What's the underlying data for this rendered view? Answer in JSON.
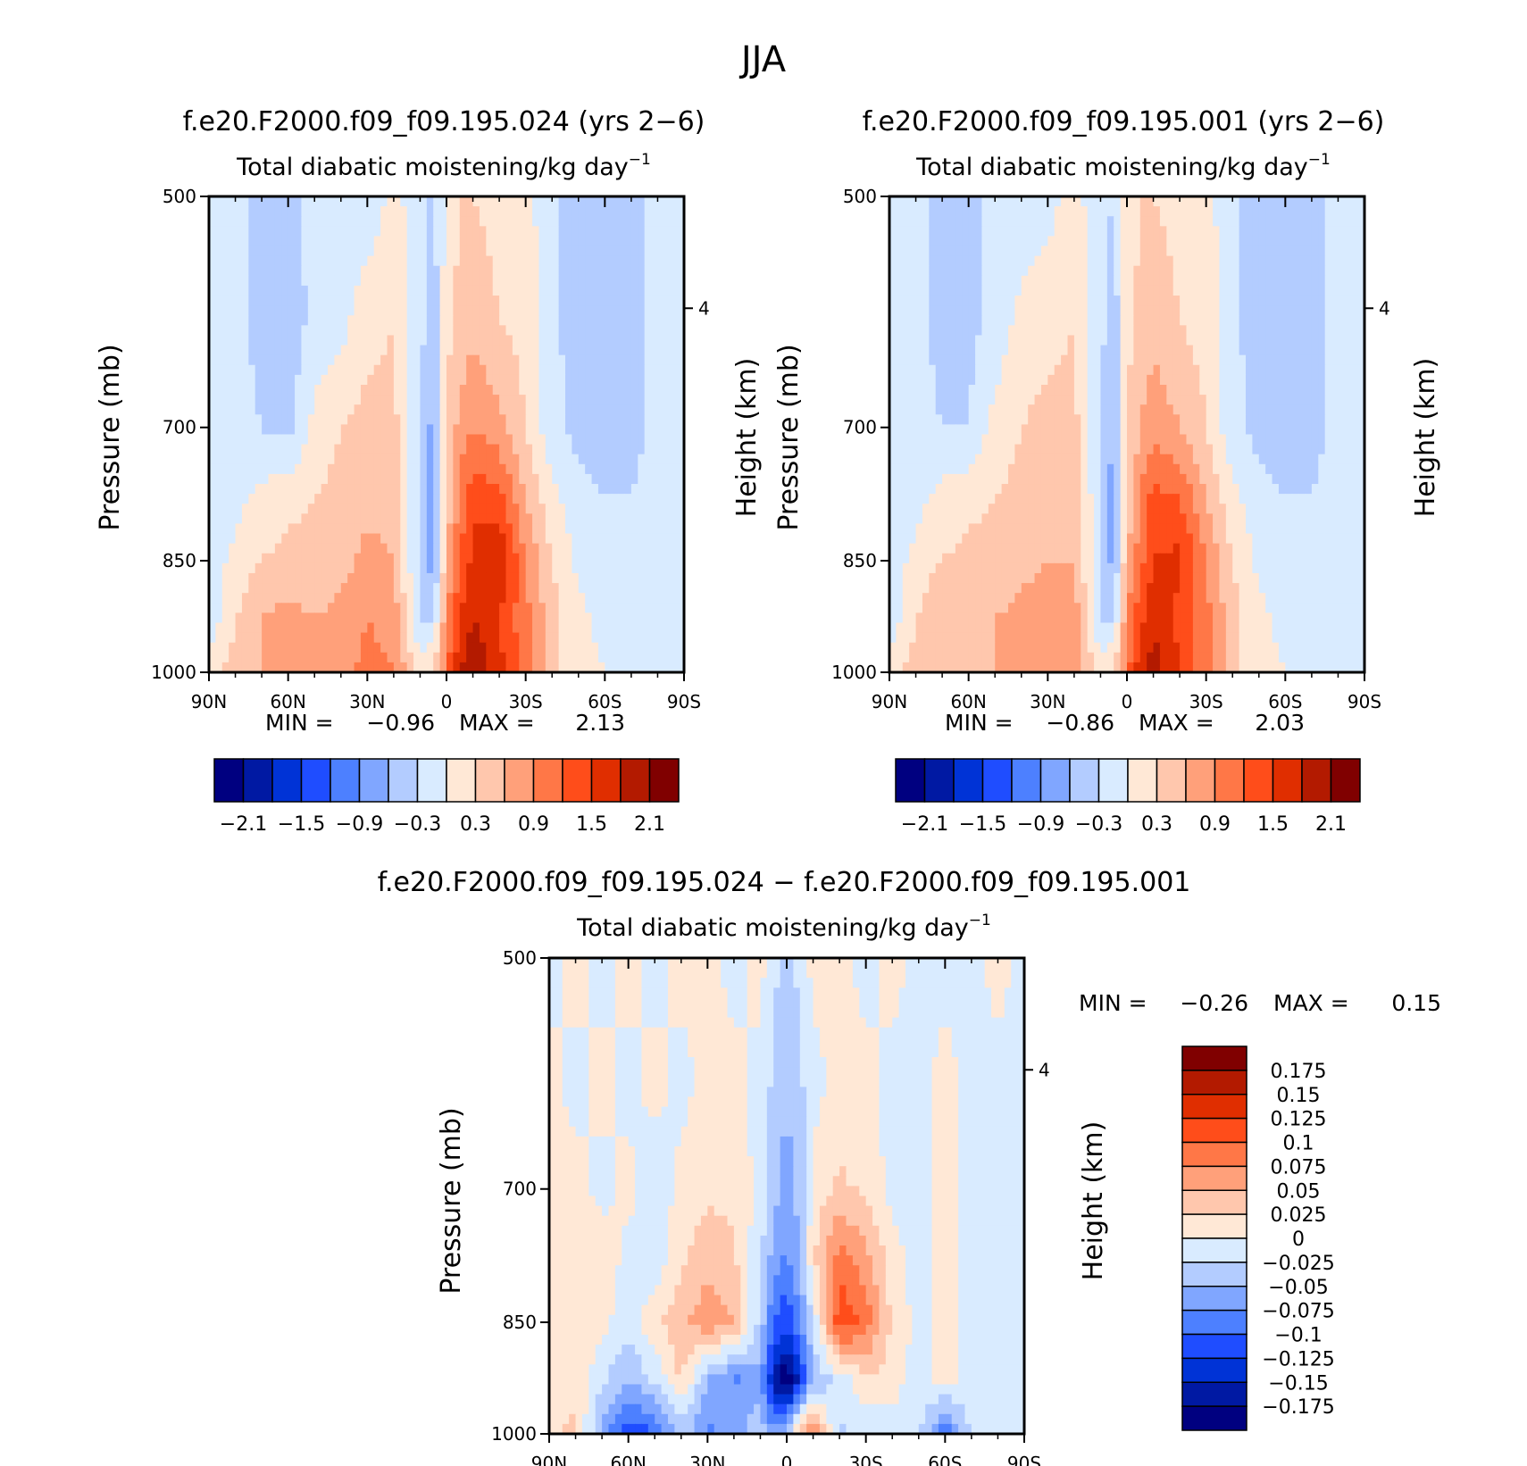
{
  "figure": {
    "title": "JJA",
    "diff_title": "f.e20.F2000.f09_f09.195.024 − f.e20.F2000.f09_f09.195.001"
  },
  "colors": {
    "main_scale": [
      "#000080",
      "#0019a3",
      "#0033d6",
      "#1f4dff",
      "#4d80ff",
      "#80a6ff",
      "#b3ccff",
      "#d9ebff",
      "#ffe8d6",
      "#ffc7ad",
      "#ffa07a",
      "#ff7747",
      "#ff4d1a",
      "#e02e00",
      "#b31a00",
      "#800000"
    ],
    "diff_scale": [
      "#000080",
      "#0019a3",
      "#0033d6",
      "#1f4dff",
      "#4d80ff",
      "#80a6ff",
      "#b3ccff",
      "#d9ebff",
      "#ffe8d6",
      "#ffc7ad",
      "#ffa07a",
      "#ff7747",
      "#ff4d1a",
      "#e02e00",
      "#b31a00",
      "#800000"
    ]
  },
  "chart_data": [
    {
      "type": "heatmap",
      "title": "f.e20.F2000.f09_f09.195.024 (yrs 2−6)",
      "subtitle": "Total diabatic moistening/kg day",
      "subtitle_exp": "−1",
      "xlabel": "",
      "ylabel": "Pressure (mb)",
      "ylabel_right": "Height (km)",
      "xticks": [
        "90N",
        "60N",
        "30N",
        "0",
        "30S",
        "60S",
        "90S"
      ],
      "yticks": [
        "500",
        "700",
        "850",
        "1000"
      ],
      "yticks_right": [
        "4"
      ],
      "xlim": [
        90,
        -90
      ],
      "ylim": [
        500,
        1000
      ],
      "min_label": "MIN =",
      "min_value": "−0.96",
      "max_label": "MAX =",
      "max_value": "2.13",
      "colorbar_labels": [
        "−2.1",
        "−1.5",
        "−0.9",
        "−0.3",
        "0.3",
        "0.9",
        "1.5",
        "2.1"
      ],
      "colorbar_levels": [
        -2.1,
        -1.8,
        -1.5,
        -1.2,
        -0.9,
        -0.6,
        -0.3,
        0,
        0.3,
        0.6,
        0.9,
        1.2,
        1.5,
        1.8,
        2.1
      ],
      "field": {
        "lat": [
          90,
          80,
          70,
          60,
          50,
          40,
          30,
          20,
          10,
          5,
          0,
          -5,
          -10,
          -20,
          -30,
          -40,
          -50,
          -60,
          -70,
          -80,
          -90
        ],
        "p": [
          500,
          600,
          700,
          775,
          850,
          925,
          1000
        ],
        "values": [
          [
            -0.2,
            -0.2,
            -0.4,
            -0.4,
            -0.2,
            -0.2,
            -0.2,
            0.1,
            -0.2,
            -0.4,
            0.1,
            0.3,
            0.3,
            0.2,
            0.1,
            -0.2,
            -0.5,
            -0.5,
            -0.4,
            -0.2,
            -0.2
          ],
          [
            -0.2,
            -0.2,
            -0.4,
            -0.5,
            -0.2,
            -0.1,
            0.2,
            0.3,
            -0.2,
            -0.5,
            0.2,
            0.4,
            0.5,
            0.3,
            0.2,
            -0.2,
            -0.5,
            -0.6,
            -0.4,
            -0.2,
            -0.2
          ],
          [
            -0.2,
            -0.2,
            -0.3,
            -0.4,
            0.1,
            0.3,
            0.4,
            0.4,
            -0.3,
            -0.7,
            0.3,
            0.7,
            0.9,
            0.7,
            0.3,
            -0.2,
            -0.4,
            -0.5,
            -0.4,
            -0.2,
            -0.2
          ],
          [
            -0.2,
            -0.1,
            0.1,
            0.2,
            0.3,
            0.4,
            0.5,
            0.5,
            -0.4,
            -0.9,
            0.3,
            1.0,
            1.4,
            1.3,
            0.6,
            0.1,
            -0.2,
            -0.3,
            -0.3,
            -0.2,
            -0.2
          ],
          [
            -0.2,
            0.1,
            0.3,
            0.4,
            0.4,
            0.5,
            0.7,
            0.6,
            -0.4,
            -0.8,
            0.6,
            1.2,
            1.6,
            1.8,
            0.9,
            0.3,
            -0.1,
            -0.2,
            -0.2,
            -0.2,
            -0.2
          ],
          [
            -0.2,
            0.3,
            0.6,
            0.7,
            0.6,
            0.7,
            0.9,
            0.8,
            -0.3,
            -0.3,
            0.9,
            1.5,
            1.8,
            1.5,
            1.0,
            0.4,
            0.1,
            -0.1,
            -0.2,
            -0.2,
            -0.2
          ],
          [
            0.2,
            0.4,
            0.6,
            0.7,
            0.6,
            0.8,
            1.0,
            0.9,
            0.2,
            0.3,
            1.1,
            1.8,
            2.1,
            1.6,
            1.0,
            0.4,
            0.1,
            0.0,
            -0.1,
            -0.2,
            -0.2
          ]
        ]
      }
    },
    {
      "type": "heatmap",
      "title": "f.e20.F2000.f09_f09.195.001 (yrs 2−6)",
      "subtitle": "Total diabatic moistening/kg day",
      "subtitle_exp": "−1",
      "xlabel": "",
      "ylabel": "Pressure (mb)",
      "ylabel_right": "Height (km)",
      "xticks": [
        "90N",
        "60N",
        "30N",
        "0",
        "30S",
        "60S",
        "90S"
      ],
      "yticks": [
        "500",
        "700",
        "850",
        "1000"
      ],
      "yticks_right": [
        "4"
      ],
      "xlim": [
        90,
        -90
      ],
      "ylim": [
        500,
        1000
      ],
      "min_label": "MIN =",
      "min_value": "−0.86",
      "max_label": "MAX =",
      "max_value": "2.03",
      "colorbar_labels": [
        "−2.1",
        "−1.5",
        "−0.9",
        "−0.3",
        "0.3",
        "0.9",
        "1.5",
        "2.1"
      ],
      "colorbar_levels": [
        -2.1,
        -1.8,
        -1.5,
        -1.2,
        -0.9,
        -0.6,
        -0.3,
        0,
        0.3,
        0.6,
        0.9,
        1.2,
        1.5,
        1.8,
        2.1
      ],
      "field": {
        "lat": [
          90,
          80,
          70,
          60,
          50,
          40,
          30,
          20,
          10,
          5,
          0,
          -5,
          -10,
          -20,
          -30,
          -40,
          -50,
          -60,
          -70,
          -80,
          -90
        ],
        "p": [
          500,
          600,
          700,
          775,
          850,
          925,
          1000
        ],
        "values": [
          [
            -0.2,
            -0.2,
            -0.4,
            -0.4,
            -0.2,
            -0.2,
            -0.1,
            0.1,
            -0.2,
            -0.3,
            0.1,
            0.3,
            0.3,
            0.2,
            0.1,
            -0.2,
            -0.5,
            -0.5,
            -0.4,
            -0.2,
            -0.2
          ],
          [
            -0.2,
            -0.2,
            -0.4,
            -0.4,
            -0.2,
            0.1,
            0.2,
            0.3,
            -0.2,
            -0.5,
            0.2,
            0.4,
            0.5,
            0.3,
            0.2,
            -0.2,
            -0.5,
            -0.6,
            -0.4,
            -0.2,
            -0.2
          ],
          [
            -0.2,
            -0.2,
            -0.3,
            -0.3,
            0.1,
            0.3,
            0.4,
            0.4,
            -0.3,
            -0.6,
            0.3,
            0.6,
            0.8,
            0.6,
            0.3,
            -0.2,
            -0.4,
            -0.5,
            -0.4,
            -0.2,
            -0.2
          ],
          [
            -0.2,
            -0.1,
            0.1,
            0.2,
            0.3,
            0.4,
            0.5,
            0.5,
            -0.3,
            -0.8,
            0.3,
            0.9,
            1.3,
            1.2,
            0.6,
            0.1,
            -0.2,
            -0.3,
            -0.3,
            -0.2,
            -0.2
          ],
          [
            -0.2,
            0.1,
            0.3,
            0.4,
            0.4,
            0.5,
            0.6,
            0.6,
            -0.3,
            -0.7,
            0.6,
            1.1,
            1.5,
            1.6,
            0.9,
            0.3,
            -0.1,
            -0.2,
            -0.2,
            -0.2,
            -0.2
          ],
          [
            -0.2,
            0.3,
            0.6,
            0.6,
            0.6,
            0.7,
            0.8,
            0.8,
            -0.3,
            -0.3,
            0.9,
            1.4,
            1.7,
            1.4,
            1.0,
            0.4,
            0.1,
            -0.1,
            -0.2,
            -0.2,
            -0.2
          ],
          [
            0.2,
            0.4,
            0.6,
            0.6,
            0.6,
            0.7,
            0.9,
            0.8,
            0.2,
            0.3,
            1.1,
            1.7,
            2.0,
            1.5,
            1.0,
            0.4,
            0.1,
            0.0,
            -0.1,
            -0.2,
            -0.2
          ]
        ]
      }
    },
    {
      "type": "heatmap",
      "title": "f.e20.F2000.f09_f09.195.024 − f.e20.F2000.f09_f09.195.001",
      "subtitle": "Total diabatic moistening/kg day",
      "subtitle_exp": "−1",
      "xlabel": "",
      "ylabel": "Pressure (mb)",
      "ylabel_right": "Height (km)",
      "xticks": [
        "90N",
        "60N",
        "30N",
        "0",
        "30S",
        "60S",
        "90S"
      ],
      "yticks": [
        "500",
        "700",
        "850",
        "1000"
      ],
      "yticks_right": [
        "4"
      ],
      "xlim": [
        90,
        -90
      ],
      "ylim": [
        500,
        1000
      ],
      "min_label": "MIN =",
      "min_value": "−0.26",
      "max_label": "MAX =",
      "max_value": "0.15",
      "colorbar_labels": [
        "0.175",
        "0.15",
        "0.125",
        "0.1",
        "0.075",
        "0.05",
        "0.025",
        "0",
        "−0.025",
        "−0.05",
        "−0.075",
        "−0.1",
        "−0.125",
        "−0.15",
        "−0.175"
      ],
      "colorbar_levels": [
        -0.175,
        -0.15,
        -0.125,
        -0.1,
        -0.075,
        -0.05,
        -0.025,
        0,
        0.025,
        0.05,
        0.075,
        0.1,
        0.125,
        0.15,
        0.175
      ],
      "field": {
        "lat": [
          90,
          80,
          70,
          60,
          50,
          40,
          30,
          20,
          10,
          5,
          0,
          -5,
          -10,
          -20,
          -30,
          -40,
          -50,
          -60,
          -70,
          -80,
          -90
        ],
        "p": [
          500,
          600,
          700,
          775,
          850,
          925,
          1000
        ],
        "values": [
          [
            -0.01,
            0.01,
            -0.01,
            0.01,
            -0.01,
            0.01,
            0.01,
            -0.01,
            0.01,
            -0.02,
            -0.03,
            -0.02,
            0.01,
            0.01,
            -0.01,
            0.01,
            -0.01,
            -0.01,
            -0.01,
            0.01,
            -0.01
          ],
          [
            0.01,
            -0.01,
            0.01,
            -0.01,
            0.01,
            -0.01,
            0.01,
            0.01,
            -0.01,
            -0.03,
            -0.05,
            -0.03,
            -0.01,
            0.01,
            0.01,
            -0.01,
            -0.01,
            0.01,
            -0.01,
            -0.01,
            -0.01
          ],
          [
            0.01,
            0.01,
            -0.01,
            0.01,
            -0.02,
            0.01,
            0.02,
            0.02,
            -0.01,
            -0.04,
            -0.06,
            -0.04,
            0.01,
            0.03,
            0.02,
            -0.01,
            -0.01,
            0.01,
            -0.01,
            -0.01,
            -0.01
          ],
          [
            0.01,
            0.02,
            0.02,
            -0.01,
            -0.02,
            0.02,
            0.04,
            0.03,
            -0.02,
            -0.06,
            -0.08,
            -0.05,
            0.02,
            0.09,
            0.06,
            0.01,
            -0.01,
            0.01,
            -0.01,
            -0.01,
            -0.01
          ],
          [
            0.01,
            0.01,
            0.01,
            -0.02,
            0.02,
            0.04,
            0.07,
            0.05,
            -0.03,
            -0.1,
            -0.12,
            -0.08,
            -0.02,
            0.12,
            0.09,
            0.02,
            -0.01,
            0.01,
            -0.01,
            -0.02,
            -0.01
          ],
          [
            0.01,
            0.02,
            -0.02,
            -0.05,
            -0.02,
            0.03,
            -0.05,
            -0.08,
            -0.06,
            -0.16,
            -0.2,
            -0.14,
            -0.05,
            -0.02,
            0.02,
            0.01,
            -0.01,
            0.01,
            -0.01,
            -0.02,
            -0.01
          ],
          [
            0.02,
            0.03,
            -0.06,
            -0.12,
            -0.1,
            -0.04,
            -0.08,
            -0.06,
            -0.03,
            -0.06,
            -0.05,
            0.06,
            0.08,
            -0.03,
            -0.02,
            -0.01,
            -0.02,
            -0.1,
            -0.02,
            -0.01,
            -0.01
          ]
        ]
      }
    }
  ]
}
